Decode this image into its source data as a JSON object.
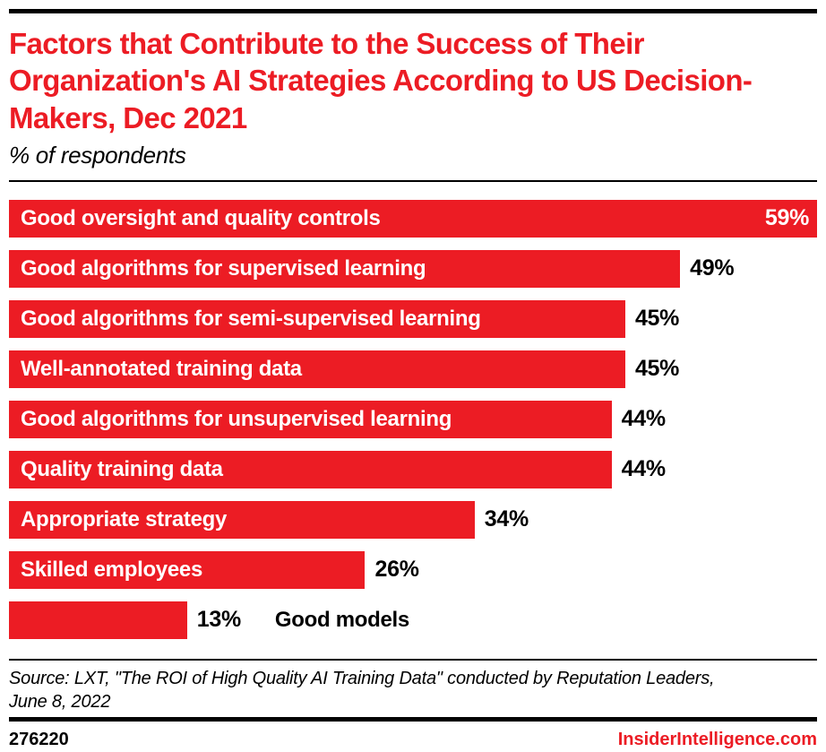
{
  "chart_data": {
    "type": "bar",
    "orientation": "horizontal",
    "title": "Factors that Contribute to the Success of Their Organization's AI Strategies According to US Decision-Makers, Dec 2021",
    "subtitle": "% of respondents",
    "unit": "%",
    "categories": [
      "Good oversight and quality controls",
      "Good algorithms for supervised learning",
      "Good algorithms for semi-supervised learning",
      "Well-annotated training data",
      "Good algorithms for unsupervised learning",
      "Quality training data",
      "Appropriate strategy",
      "Skilled employees",
      "Good models"
    ],
    "values": [
      59,
      49,
      45,
      45,
      44,
      44,
      34,
      26,
      13
    ],
    "value_labels": [
      "59%",
      "49%",
      "45%",
      "45%",
      "44%",
      "44%",
      "34%",
      "26%",
      "13%"
    ],
    "xlim": [
      0,
      59
    ],
    "grid": false,
    "legend": "none",
    "bar_color": "#ec1c24",
    "label_position": [
      "inside",
      "inside",
      "inside",
      "inside",
      "inside",
      "inside",
      "inside",
      "inside",
      "outside"
    ],
    "value_position": [
      "inside",
      "outside",
      "outside",
      "outside",
      "outside",
      "outside",
      "outside",
      "outside",
      "outside"
    ]
  },
  "footer": {
    "source_lines": [
      "Source: LXT, \"The ROI of High Quality AI Training Data\" conducted by Reputation Leaders,",
      "June 8, 2022"
    ],
    "chart_id": "276220",
    "brand": "InsiderIntelligence.com"
  },
  "colors": {
    "accent_red": "#ec1c24",
    "bar_label_text": "#ffffff",
    "value_text": "#000000",
    "rule": "#000000"
  }
}
